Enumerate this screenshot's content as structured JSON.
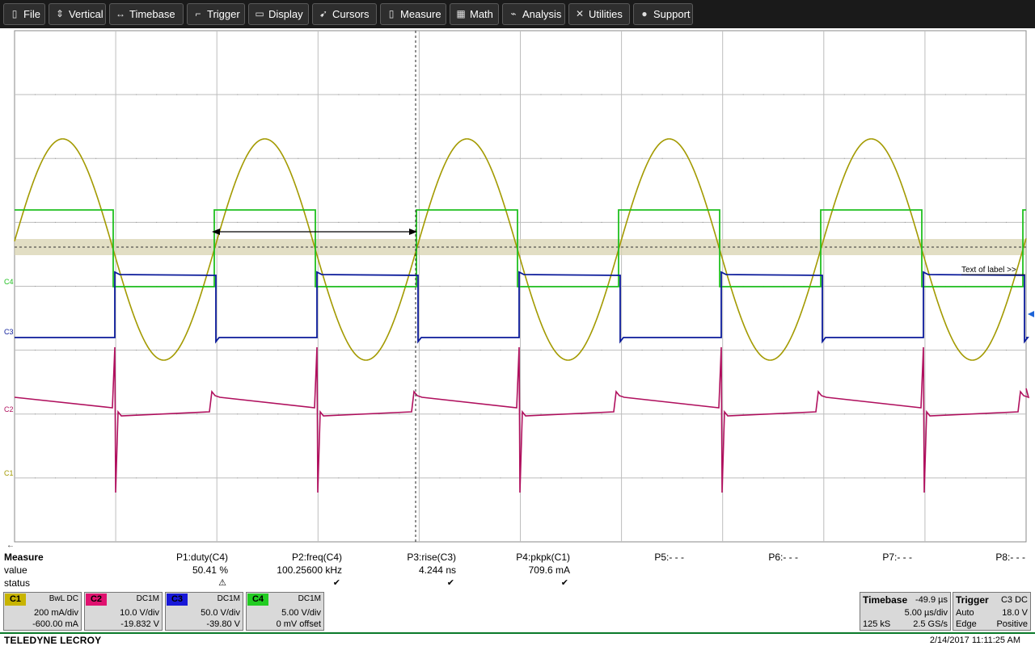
{
  "menu": [
    {
      "label": "File",
      "icon": "file-icon",
      "glyph": "▯"
    },
    {
      "label": "Vertical",
      "icon": "vertical-icon",
      "glyph": "⇕"
    },
    {
      "label": "Timebase",
      "icon": "timebase-icon",
      "glyph": "↔"
    },
    {
      "label": "Trigger",
      "icon": "trigger-icon",
      "glyph": "⌐"
    },
    {
      "label": "Display",
      "icon": "display-icon",
      "glyph": "▭"
    },
    {
      "label": "Cursors",
      "icon": "cursors-icon",
      "glyph": "➹"
    },
    {
      "label": "Measure",
      "icon": "measure-icon",
      "glyph": "▯"
    },
    {
      "label": "Math",
      "icon": "math-icon",
      "glyph": "▦"
    },
    {
      "label": "Analysis",
      "icon": "analysis-icon",
      "glyph": "⌁"
    },
    {
      "label": "Utilities",
      "icon": "utilities-icon",
      "glyph": "✕"
    },
    {
      "label": "Support",
      "icon": "support-icon",
      "glyph": "●"
    }
  ],
  "channel_labels": {
    "c4": "C4",
    "c3": "C3",
    "c2": "C2",
    "c1": "C1"
  },
  "annotation": "Text of label >>",
  "measure": {
    "title": "Measure",
    "row_value": "value",
    "row_status": "status",
    "params": [
      {
        "name": "P1:duty(C4)",
        "value": "50.41 %",
        "status": "⚠"
      },
      {
        "name": "P2:freq(C4)",
        "value": "100.25600 kHz",
        "status": "✔"
      },
      {
        "name": "P3:rise(C3)",
        "value": "4.244 ns",
        "status": "✔"
      },
      {
        "name": "P4:pkpk(C1)",
        "value": "709.6 mA",
        "status": "✔"
      },
      {
        "name": "P5:- - -",
        "value": "",
        "status": ""
      },
      {
        "name": "P6:- - -",
        "value": "",
        "status": ""
      },
      {
        "name": "P7:- - -",
        "value": "",
        "status": ""
      },
      {
        "name": "P8:- - -",
        "value": "",
        "status": ""
      }
    ]
  },
  "channels": [
    {
      "tag": "C1",
      "coupling": "BwL DC",
      "scale": "200 mA/div",
      "offset": "-600.00 mA",
      "color": "#c8b400"
    },
    {
      "tag": "C2",
      "coupling": "DC1M",
      "scale": "10.0 V/div",
      "offset": "-19.832 V",
      "color": "#e0116f"
    },
    {
      "tag": "C3",
      "coupling": "DC1M",
      "scale": "50.0 V/div",
      "offset": "-39.80 V",
      "color": "#1818d8"
    },
    {
      "tag": "C4",
      "coupling": "DC1M",
      "scale": "5.00 V/div",
      "offset": "0 mV offset",
      "color": "#22cc22"
    }
  ],
  "timebase": {
    "title": "Timebase",
    "delay": "-49.9 µs",
    "scale": "5.00 µs/div",
    "samples": "125 kS",
    "rate": "2.5 GS/s"
  },
  "trigger": {
    "title": "Trigger",
    "source": "C3 DC",
    "mode": "Auto",
    "level": "18.0 V",
    "type": "Edge",
    "slope": "Positive"
  },
  "brand": "TELEDYNE LECROY",
  "timestamp": "2/14/2017 11:11:25 AM",
  "trace_colors": {
    "c1": "#a39a00",
    "c2": "#b0105e",
    "c3": "#0a1a9a",
    "c4": "#20c020"
  }
}
